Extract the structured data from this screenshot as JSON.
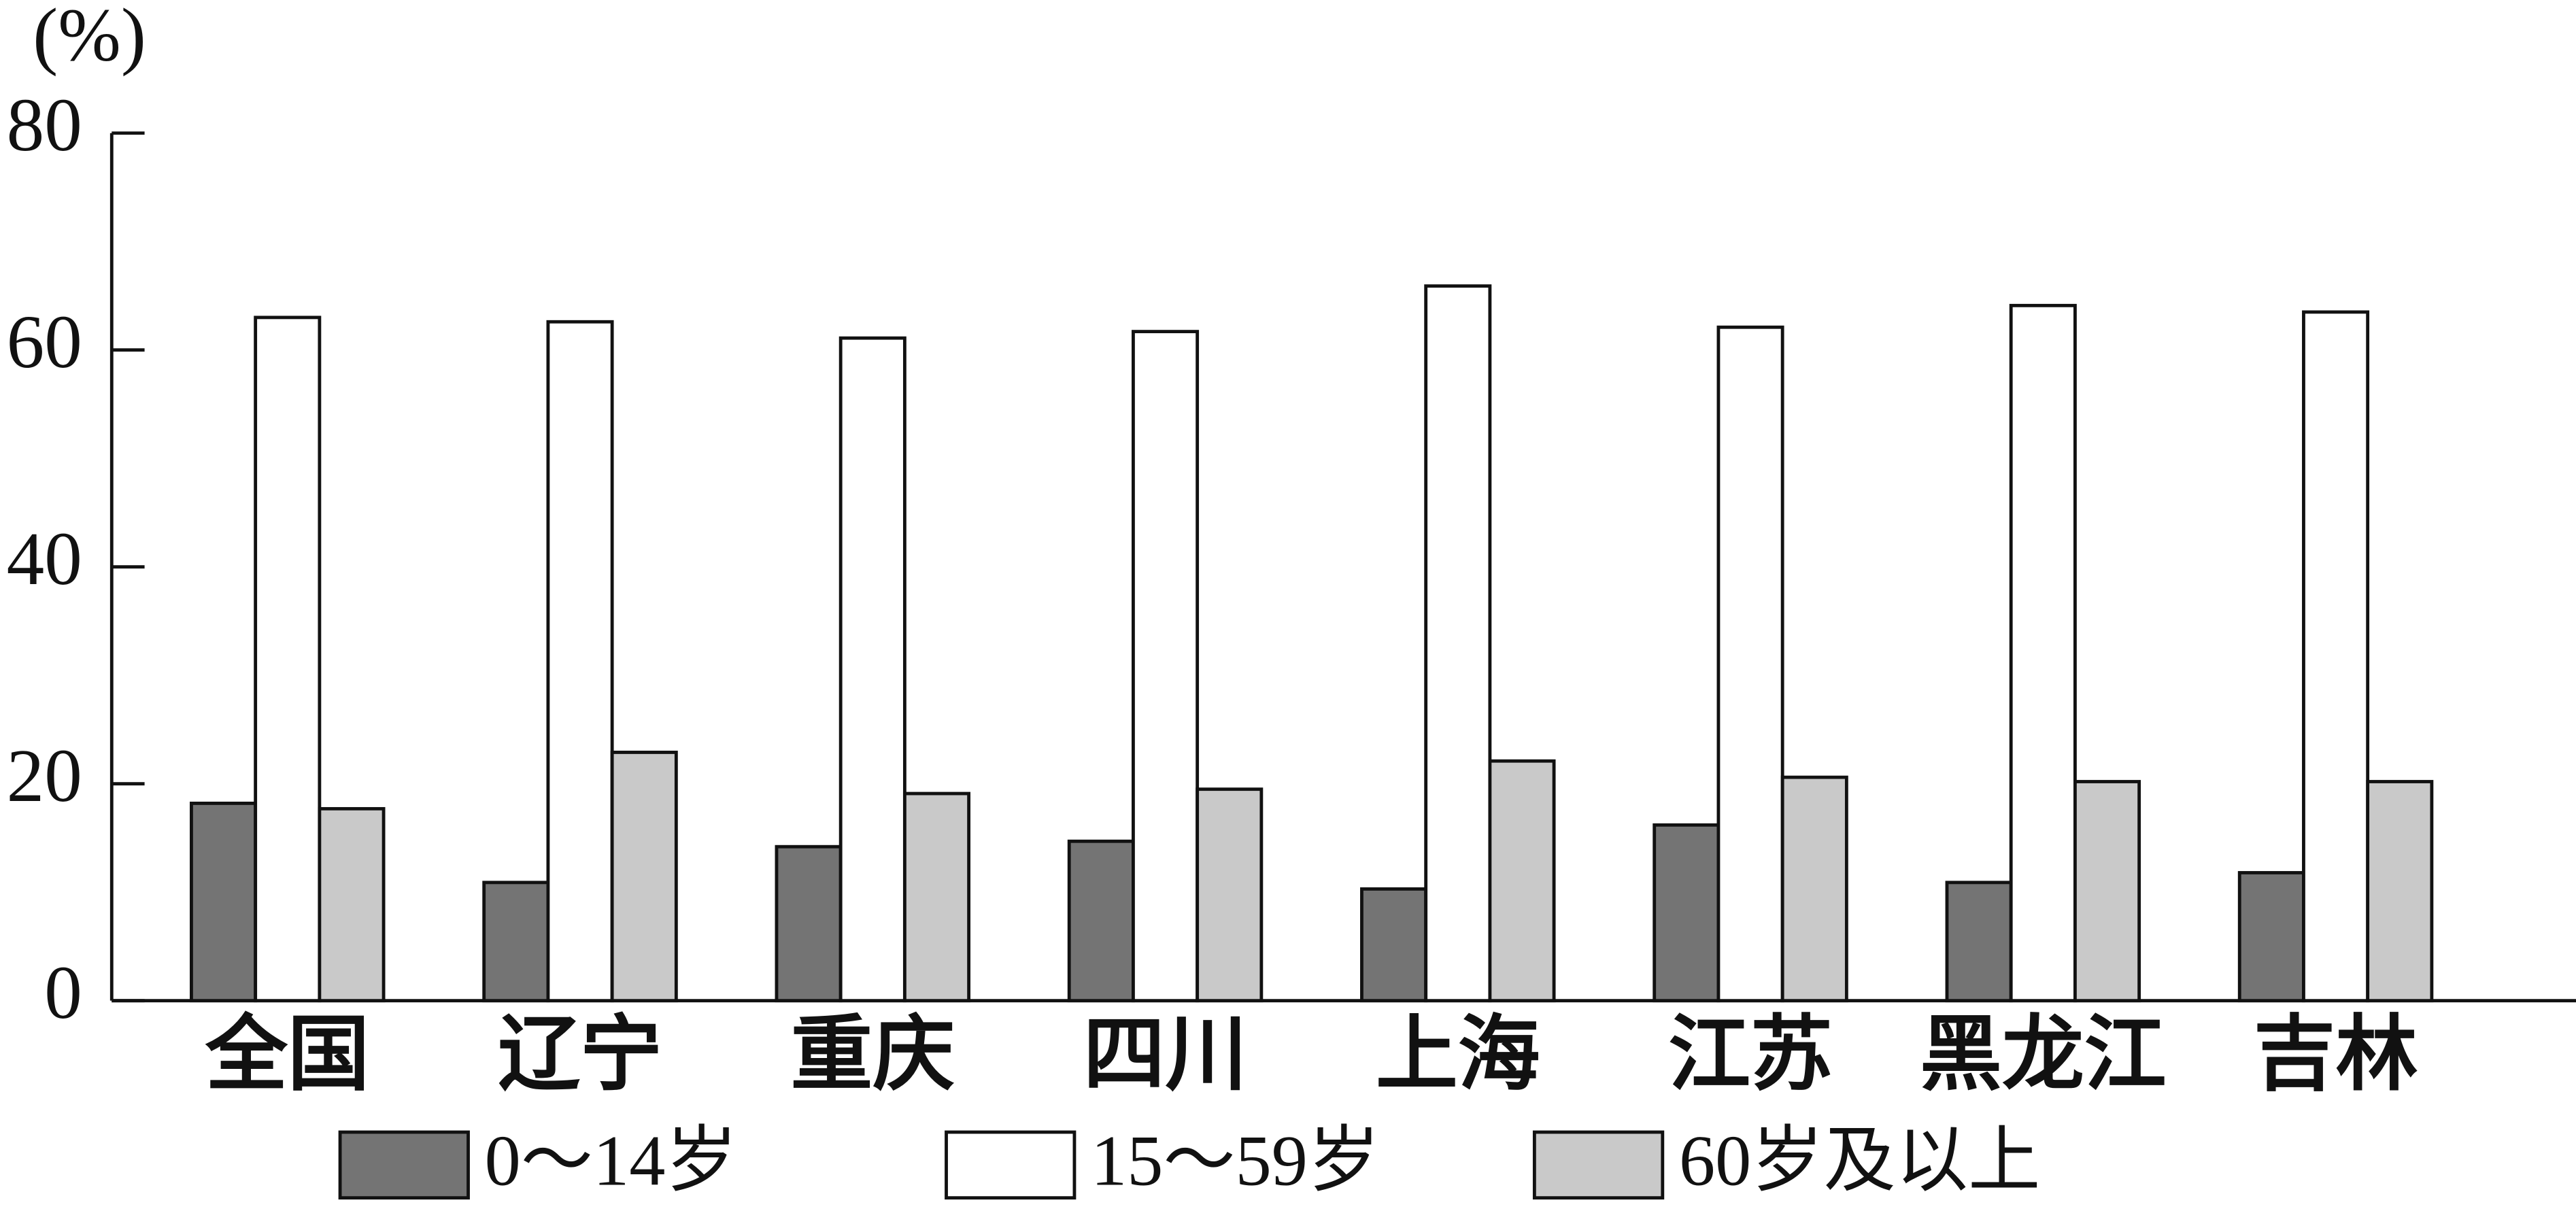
{
  "chart_data": {
    "type": "bar",
    "y_label": "(%)",
    "categories": [
      "全国",
      "辽宁",
      "重庆",
      "四川",
      "上海",
      "江苏",
      "黑龙江",
      "吉林"
    ],
    "series": [
      {
        "name": "0～14岁",
        "color": "#747474",
        "values": [
          18.2,
          10.9,
          14.2,
          14.7,
          10.3,
          16.2,
          10.9,
          11.8
        ]
      },
      {
        "name": "15～59岁",
        "color": "#ffffff",
        "values": [
          63.0,
          62.6,
          61.1,
          61.7,
          65.9,
          62.1,
          64.1,
          63.5
        ]
      },
      {
        "name": "60岁及以上",
        "color": "#c9c9c9",
        "values": [
          17.7,
          22.9,
          19.1,
          19.5,
          22.1,
          20.6,
          20.2,
          20.2
        ]
      }
    ],
    "ylim": [
      0,
      80
    ],
    "yticks": [
      0,
      20,
      40,
      60,
      80
    ]
  }
}
